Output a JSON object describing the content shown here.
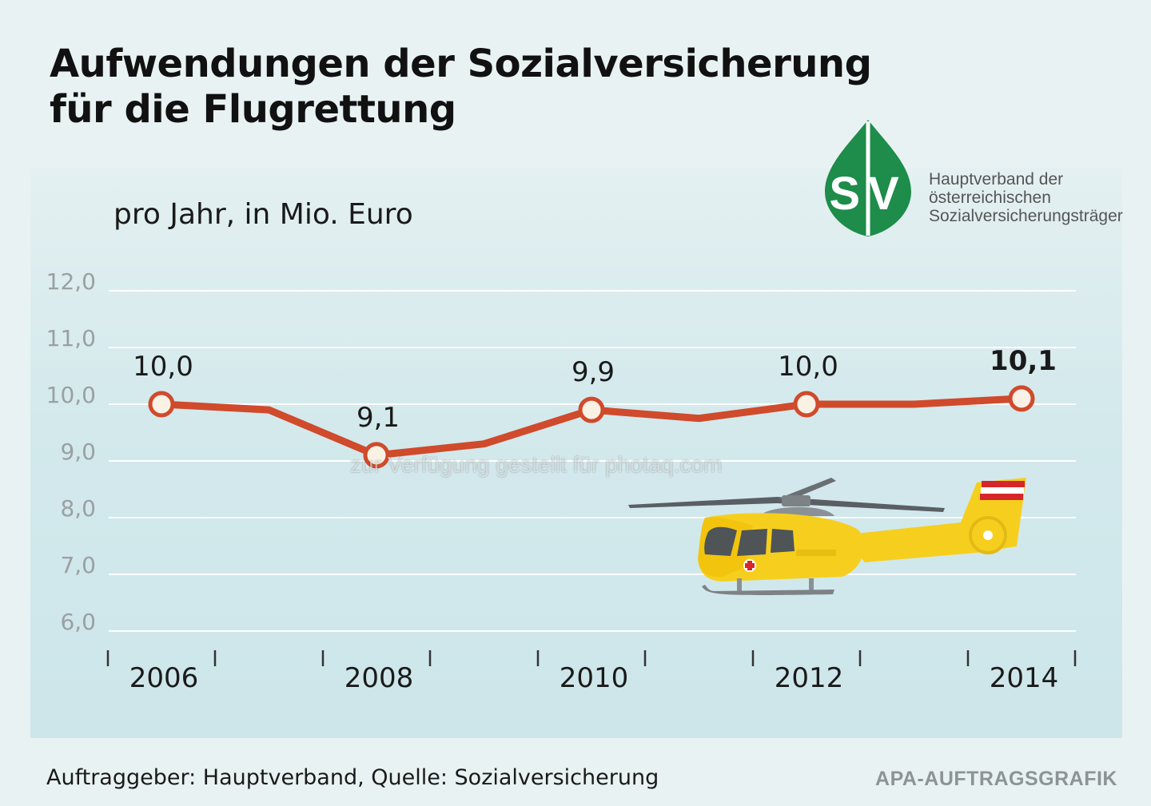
{
  "title_lines": [
    "Aufwendungen der Sozialversicherung",
    "für die Flugrettung"
  ],
  "subtitle": "pro Jahr, in Mio. Euro",
  "logo": {
    "icon": "sv-leaf-logo",
    "letters": "SV",
    "text_lines": [
      "Hauptverband der",
      "österreichischen",
      "Sozialversicherungsträger"
    ],
    "color": "#1e8c4a"
  },
  "footer": {
    "source": "Auftraggeber: Hauptverband, Quelle: Sozialversicherung",
    "credit": "APA-AUFTRAGSGRAFIK"
  },
  "watermark": "zur Verfügung gestellt für photaq.com",
  "chart_data": {
    "type": "line",
    "title": "Aufwendungen der Sozialversicherung für die Flugrettung",
    "subtitle": "pro Jahr, in Mio. Euro",
    "x": [
      2006,
      2007,
      2008,
      2009,
      2010,
      2011,
      2012,
      2013,
      2014
    ],
    "series": [
      {
        "values": [
          10.0,
          9.9,
          9.1,
          9.3,
          9.9,
          9.75,
          10.0,
          10.0,
          10.1
        ]
      }
    ],
    "data_labels": [
      {
        "x": 2006,
        "text": "10,0"
      },
      {
        "x": 2008,
        "text": "9,1"
      },
      {
        "x": 2010,
        "text": "9,9"
      },
      {
        "x": 2012,
        "text": "10,0"
      },
      {
        "x": 2014,
        "text": "10,1",
        "bold": true
      }
    ],
    "x_tick_labels": [
      "2006",
      "2008",
      "2010",
      "2012",
      "2014"
    ],
    "y_tick_labels": [
      "6,0",
      "7,0",
      "8,0",
      "9,0",
      "10,0",
      "11,0",
      "12,0"
    ],
    "ylim": [
      6,
      12
    ],
    "xlim": [
      2006,
      2014
    ],
    "grid": true,
    "line_color": "#d04a2c",
    "marker_fill": "#f8f1e4",
    "grid_color": "#ffffff"
  },
  "colors": {
    "background": "#e9f2f2",
    "panel": "#d3e9ec",
    "helicopter": "#f6cf1e"
  }
}
